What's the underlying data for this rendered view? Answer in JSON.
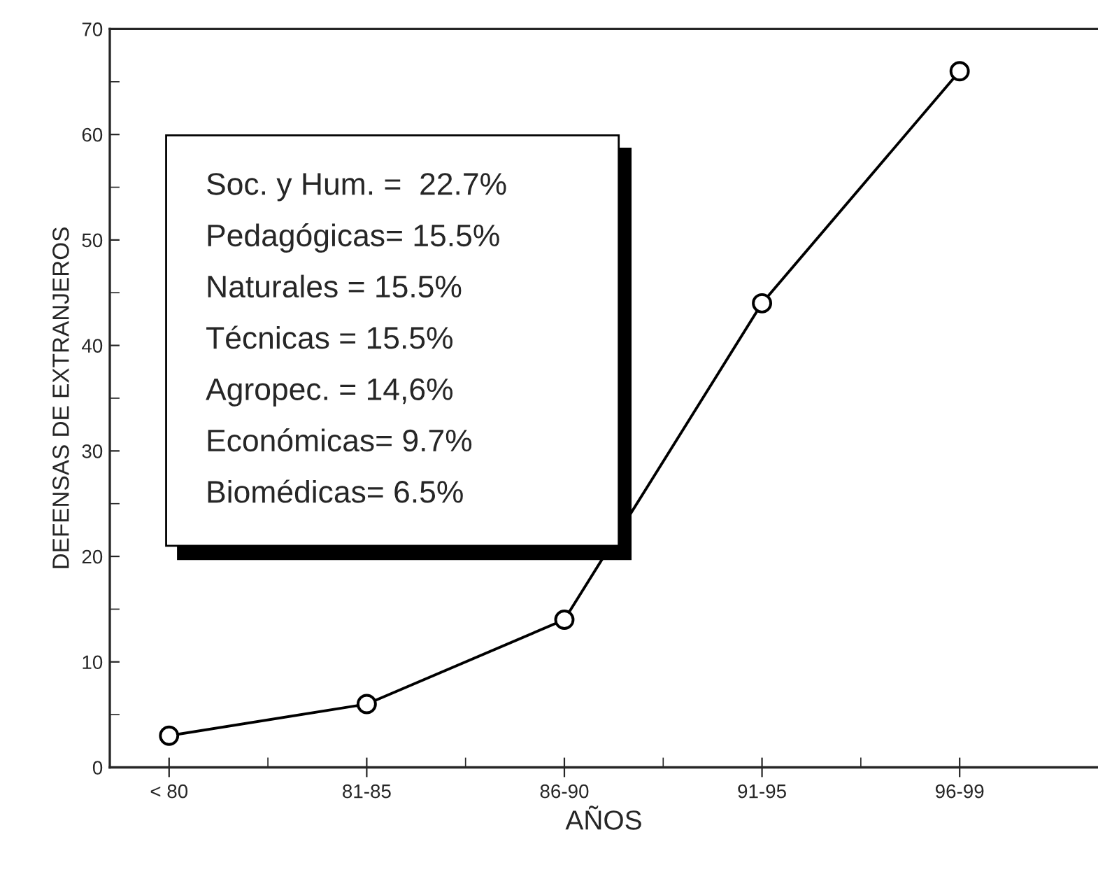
{
  "chart_data": {
    "type": "line",
    "xlabel": "AÑOS",
    "ylabel": "DEFENSAS DE EXTRANJEROS",
    "categories": [
      "< 80",
      "81-85",
      "86-90",
      "91-95",
      "96-99"
    ],
    "series": [
      {
        "color": "#000000",
        "values": [
          3,
          6,
          14,
          44,
          66
        ]
      }
    ],
    "ylim": [
      0,
      70
    ],
    "yticks": [
      0,
      10,
      20,
      30,
      40,
      50,
      60,
      70
    ],
    "grid": false,
    "marker": "circle",
    "line_style": "solid",
    "annotations": [
      "Soc. y Hum. =  22.7%",
      "Pedagógicas= 15.5%",
      "Naturales = 15.5%",
      "Técnicas = 15.5%",
      "Agropec. = 14,6%",
      "Económicas= 9.7%",
      "Biomédicas= 6.5%"
    ]
  }
}
